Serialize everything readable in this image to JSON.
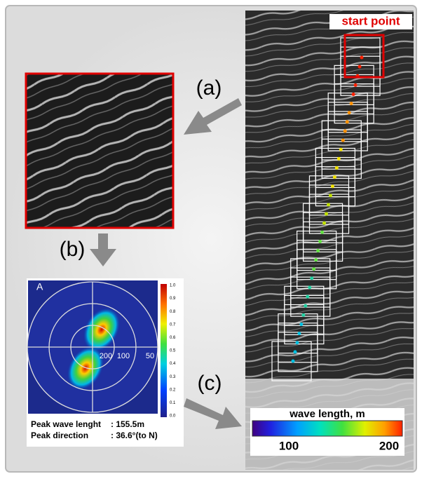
{
  "labels": {
    "start": "start point",
    "a": "(a)",
    "b": "(b)",
    "c": "(c)"
  },
  "polar": {
    "panel": "A",
    "rings": [
      "200",
      "100",
      "50"
    ],
    "colorbar_ticks": [
      "1.0",
      "0.9",
      "0.8",
      "0.7",
      "0.6",
      "0.5",
      "0.4",
      "0.3",
      "0.2",
      "0.1",
      "0.0"
    ],
    "peak_wavelength_label": "Peak wave lenght",
    "peak_wavelength_value": ": 155.5m",
    "peak_direction_label": "Peak direction",
    "peak_direction_value": ": 36.6°(to N)"
  },
  "wave_bar": {
    "title": "wave length, m",
    "ticks": [
      "100",
      "200"
    ]
  }
}
